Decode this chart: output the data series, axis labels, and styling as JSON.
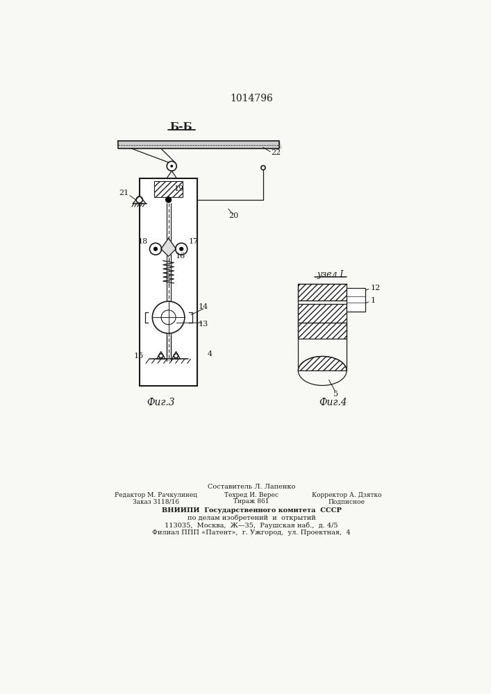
{
  "title": "1014796",
  "bg_color": "#f8f8f4",
  "line_color": "#1a1a1a",
  "fig_label_3": "Фиг.3",
  "fig_label_4": "Фиг.4",
  "section_label": "Б-Б",
  "node_label": "узел I",
  "footer_line1": "Составитель Л. Лапенко",
  "footer_line2a": "Редактор М. Рачкулинец",
  "footer_line2b": "Техред И. Верес",
  "footer_line2c": "Корректор А. Дзятко",
  "footer_line3a": "Заказ 3118/16",
  "footer_line3b": "Тираж 861",
  "footer_line3c": "Подписное",
  "footer_line4": "ВНИИПИ  Государственного комитета  СССР",
  "footer_line5": "по делам изобретений  и  открытий",
  "footer_line6": "113035,  Москва,  Ж—35,  Раушская наб.,  д. 4/5",
  "footer_line7": "Филиал ППП «Патент»,  г. Ужгород,  ул. Проектная,  4"
}
